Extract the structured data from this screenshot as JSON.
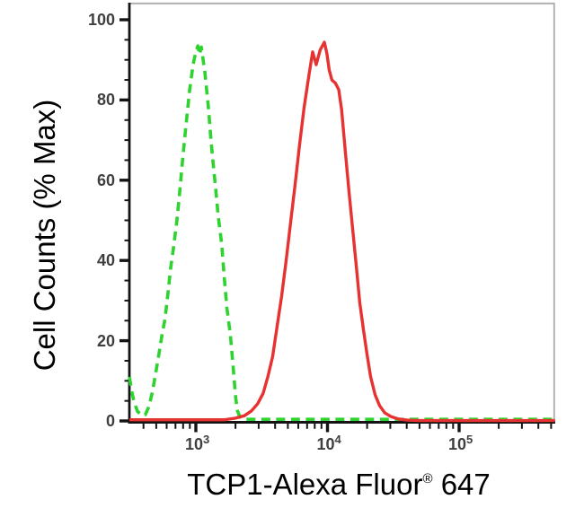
{
  "figure": {
    "y_axis": {
      "title": "Cell Counts (% Max)",
      "ticks": [
        {
          "label": "100",
          "value": 100
        },
        {
          "label": "80",
          "value": 80
        },
        {
          "label": "60",
          "value": 60
        },
        {
          "label": "40",
          "value": 40
        },
        {
          "label": "20",
          "value": 20
        },
        {
          "label": "0",
          "value": 0
        }
      ],
      "minor_step": 5
    },
    "x_axis": {
      "title_main": "TCP1-Alexa Fluor",
      "title_sup": "®",
      "title_suffix": " 647",
      "scale": "log",
      "ticks": [
        {
          "base": "10",
          "exp": "3",
          "value": 1000
        },
        {
          "base": "10",
          "exp": "4",
          "value": 10000
        },
        {
          "base": "10",
          "exp": "5",
          "value": 100000
        }
      ]
    },
    "colors": {
      "curve_green": "#2fd32f",
      "curve_red": "#e63231",
      "axis": "#141414",
      "frame": "#ababab",
      "tick_label": "#3f3f3f",
      "title": "#000000"
    }
  },
  "chart_data": {
    "type": "line",
    "title": "",
    "xlabel": "TCP1-Alexa Fluor® 647",
    "ylabel": "Cell Counts (% Max)",
    "x_scale": "log",
    "xlim": [
      313,
      537000
    ],
    "ylim": [
      0,
      104
    ],
    "x_major_ticks": [
      1000,
      10000,
      100000
    ],
    "y_major_ticks": [
      0,
      20,
      40,
      60,
      80,
      100
    ],
    "grid": false,
    "legend": "none",
    "series": [
      {
        "name": "green-dashed",
        "style": "dashed",
        "color": "#2fd32f",
        "points": [
          [
            313,
            11
          ],
          [
            325,
            7.5
          ],
          [
            340,
            4.6
          ],
          [
            360,
            2.4
          ],
          [
            385,
            1.5
          ],
          [
            412,
            1.5
          ],
          [
            440,
            3.6
          ],
          [
            468,
            7.3
          ],
          [
            490,
            11
          ],
          [
            520,
            16
          ],
          [
            550,
            21
          ],
          [
            583,
            25.5
          ],
          [
            612,
            31.5
          ],
          [
            643,
            38
          ],
          [
            675,
            43
          ],
          [
            718,
            50
          ],
          [
            753,
            57
          ],
          [
            790,
            64.5
          ],
          [
            840,
            73.5
          ],
          [
            897,
            82.5
          ],
          [
            954,
            89
          ],
          [
            1000,
            92
          ],
          [
            1035,
            93.5
          ],
          [
            1065,
            91.3
          ],
          [
            1100,
            93.2
          ],
          [
            1170,
            87
          ],
          [
            1246,
            78
          ],
          [
            1306,
            69.5
          ],
          [
            1350,
            64.5
          ],
          [
            1414,
            58
          ],
          [
            1480,
            51
          ],
          [
            1573,
            44
          ],
          [
            1645,
            35.5
          ],
          [
            1722,
            28
          ],
          [
            1830,
            21.5
          ],
          [
            1914,
            14
          ],
          [
            2007,
            5.8
          ],
          [
            2070,
            2.5
          ],
          [
            2170,
            0.9
          ],
          [
            2350,
            0.4
          ],
          [
            535000,
            0.4
          ]
        ]
      },
      {
        "name": "red-solid",
        "style": "solid",
        "color": "#e63231",
        "points": [
          [
            313,
            0.3
          ],
          [
            1650,
            0.3
          ],
          [
            1996,
            0.7
          ],
          [
            2337,
            1.3
          ],
          [
            2645,
            2.5
          ],
          [
            2950,
            4.3
          ],
          [
            3245,
            6.9
          ],
          [
            3520,
            11
          ],
          [
            3825,
            16
          ],
          [
            4150,
            23.7
          ],
          [
            4480,
            31
          ],
          [
            4850,
            40
          ],
          [
            5245,
            49.4
          ],
          [
            5680,
            59
          ],
          [
            6140,
            69
          ],
          [
            6640,
            78
          ],
          [
            7180,
            85.5
          ],
          [
            7500,
            89.5
          ],
          [
            7715,
            92
          ],
          [
            8200,
            88.8
          ],
          [
            8800,
            92.5
          ],
          [
            9460,
            94.4
          ],
          [
            9900,
            91.5
          ],
          [
            10300,
            87.5
          ],
          [
            10800,
            85
          ],
          [
            11480,
            84.2
          ],
          [
            12170,
            82.6
          ],
          [
            12800,
            77.6
          ],
          [
            13640,
            67.3
          ],
          [
            14530,
            57.5
          ],
          [
            15490,
            48.3
          ],
          [
            16500,
            39
          ],
          [
            17580,
            29.5
          ],
          [
            18740,
            22.8
          ],
          [
            19960,
            16.6
          ],
          [
            21270,
            11
          ],
          [
            23000,
            6.5
          ],
          [
            24900,
            3.8
          ],
          [
            27300,
            2
          ],
          [
            30300,
            1.1
          ],
          [
            34500,
            0.5
          ],
          [
            40300,
            0.2
          ],
          [
            48700,
            0.1
          ],
          [
            535000,
            0.1
          ]
        ]
      }
    ]
  }
}
